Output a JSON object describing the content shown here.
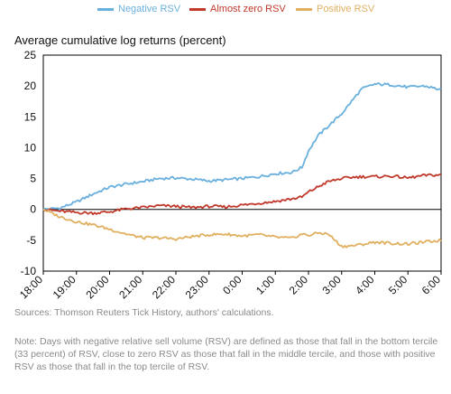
{
  "chart_data": {
    "type": "line",
    "title": "",
    "ylabel": "Average cumulative log returns (percent)",
    "xlabel": "",
    "ylim": [
      -10,
      25
    ],
    "yticks": [
      -10,
      -5,
      0,
      5,
      10,
      15,
      20,
      25
    ],
    "x_ticks": [
      "18:00",
      "19:00",
      "20:00",
      "21:00",
      "22:00",
      "23:00",
      "0:00",
      "1:00",
      "2:00",
      "3:00",
      "4:00",
      "5:00",
      "6:00"
    ],
    "x": [
      0,
      0.5,
      1,
      1.5,
      2,
      2.5,
      3,
      3.5,
      4,
      4.5,
      5,
      5.5,
      6,
      6.5,
      7,
      7.5,
      7.8,
      8,
      8.3,
      8.6,
      9,
      9.3,
      9.6,
      10,
      10.5,
      11,
      11.5,
      12
    ],
    "legend_position": "top",
    "grid": false,
    "zero_line": true,
    "series": [
      {
        "name": "Negative RSV",
        "color": "#6ab0de",
        "values": [
          0,
          0.2,
          1.2,
          2.5,
          3.6,
          4.1,
          4.5,
          5.0,
          5.1,
          4.9,
          4.6,
          4.8,
          5.0,
          5.3,
          5.8,
          6.0,
          6.8,
          9.5,
          12.0,
          13.5,
          15.5,
          17.5,
          19.5,
          20.3,
          20.2,
          19.8,
          20.0,
          19.4
        ]
      },
      {
        "name": "Almost zero RSV",
        "color": "#c0392b",
        "values": [
          0,
          -0.3,
          -0.5,
          -0.6,
          -0.4,
          0.1,
          0.3,
          0.6,
          0.5,
          0.3,
          0.5,
          0.4,
          0.7,
          1.0,
          1.3,
          1.7,
          2.0,
          2.8,
          3.7,
          4.5,
          5.0,
          5.2,
          5.3,
          5.3,
          5.4,
          5.1,
          5.5,
          5.6
        ]
      },
      {
        "name": "Positive RSV",
        "color": "#e0b060",
        "values": [
          0,
          -1.2,
          -2.0,
          -2.5,
          -3.2,
          -4.0,
          -4.6,
          -4.6,
          -4.8,
          -4.4,
          -4.1,
          -4.0,
          -4.3,
          -4.1,
          -4.5,
          -4.7,
          -4.0,
          -4.2,
          -3.8,
          -4.0,
          -6.0,
          -5.9,
          -5.7,
          -5.3,
          -5.5,
          -5.6,
          -5.3,
          -5.0
        ]
      }
    ]
  },
  "source": "Sources: Thomson Reuters Tick History, authors' calculations.",
  "note": "Note: Days with negative relative sell volume (RSV) are defined as those that fall in the bottom tercile (33 percent) of RSV, close to zero RSV as those that fall in the middle tercile, and those with positive RSV as those that fall in the top tercile of RSV."
}
